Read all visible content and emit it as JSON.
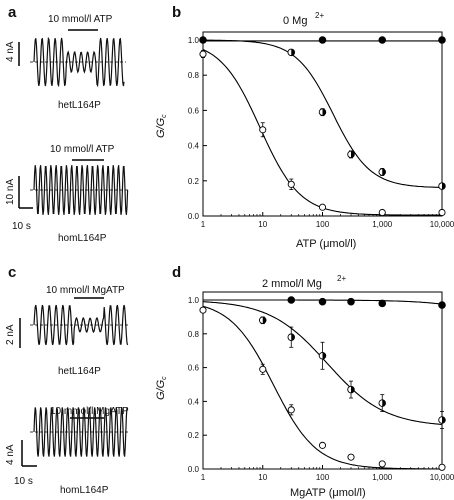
{
  "panels": {
    "a": {
      "letter": "a",
      "treatment_label": "10 mmol/l ATP",
      "scale_current": "4 nA",
      "genotype": "hetL164P"
    },
    "a2": {
      "treatment_label": "10 mmol/l ATP",
      "scale_current": "10 nA",
      "scale_time": "10 s",
      "genotype": "homL164P"
    },
    "c": {
      "letter": "c",
      "treatment_label": "10 mmol/l MgATP",
      "scale_current": "2 nA",
      "genotype": "hetL164P"
    },
    "c2": {
      "treatment_label": "10 mmol/l MgATP",
      "scale_current": "4 nA",
      "scale_time": "10 s",
      "genotype": "homL164P"
    }
  },
  "chart_data": [
    {
      "panel": "b",
      "type": "scatter",
      "title": "0 Mg",
      "title_superscript": "2+",
      "xlabel": "ATP (μmol/l)",
      "ylabel": "G/G",
      "ylabel_sub": "c",
      "xscale": "log",
      "xlim": [
        1,
        10000
      ],
      "ylim": [
        0,
        1.05
      ],
      "xticks": [
        1,
        10,
        100,
        1000,
        10000
      ],
      "xtick_labels": [
        "1",
        "10",
        "100",
        "1,000",
        "10,000"
      ],
      "yticks": [
        0,
        0.2,
        0.4,
        0.6,
        0.8,
        1.0
      ],
      "ytick_labels": [
        "0.0",
        "0.2",
        "0.4",
        "0.6",
        "0.8",
        "1.0"
      ],
      "series": [
        {
          "marker": "filled",
          "x": [
            1,
            100,
            1000,
            10000
          ],
          "y": [
            1.0,
            1.0,
            1.0,
            1.0
          ],
          "err": [
            0,
            0,
            0,
            0
          ],
          "fit": {
            "ic50": 1000000000.0,
            "h": 1,
            "min": 0.99
          }
        },
        {
          "marker": "half",
          "x": [
            30,
            100,
            300,
            1000,
            10000
          ],
          "y": [
            0.93,
            0.59,
            0.35,
            0.25,
            0.17
          ],
          "err": [
            0.01,
            0.02,
            0.02,
            0.02,
            0.01
          ],
          "fit": {
            "ic50": 150,
            "h": 1.4,
            "min": 0.16
          }
        },
        {
          "marker": "open",
          "x": [
            1,
            10,
            30,
            100,
            1000,
            10000
          ],
          "y": [
            0.92,
            0.49,
            0.18,
            0.05,
            0.02,
            0.02
          ],
          "err": [
            0.02,
            0.04,
            0.03,
            0.01,
            0.01,
            0.01
          ],
          "fit": {
            "ic50": 9,
            "h": 1.3,
            "min": 0.005
          }
        }
      ]
    },
    {
      "panel": "d",
      "type": "scatter",
      "title": "2 mmol/l  Mg",
      "title_superscript": "2+",
      "xlabel": "MgATP (μmol/l)",
      "ylabel": "G/G",
      "ylabel_sub": "c",
      "xscale": "log",
      "xlim": [
        1,
        10000
      ],
      "ylim": [
        0,
        1.05
      ],
      "xticks": [
        1,
        10,
        100,
        1000,
        10000
      ],
      "xtick_labels": [
        "1",
        "10",
        "100",
        "1,000",
        "10,000"
      ],
      "yticks": [
        0,
        0.2,
        0.4,
        0.6,
        0.8,
        1.0
      ],
      "ytick_labels": [
        "0.0",
        "0.2",
        "0.4",
        "0.6",
        "0.8",
        "1.0"
      ],
      "series": [
        {
          "marker": "filled",
          "x": [
            30,
            100,
            300,
            1000,
            10000
          ],
          "y": [
            1.0,
            0.99,
            0.99,
            0.98,
            0.97
          ],
          "err": [
            0,
            0.01,
            0.01,
            0.01,
            0.01
          ],
          "fit": {
            "ic50": 1000000.0,
            "h": 0.8,
            "min": 0.0
          }
        },
        {
          "marker": "half",
          "x": [
            10,
            30,
            100,
            300,
            1000,
            10000
          ],
          "y": [
            0.88,
            0.78,
            0.67,
            0.47,
            0.39,
            0.29
          ],
          "err": [
            0.02,
            0.06,
            0.08,
            0.05,
            0.05,
            0.05
          ],
          "fit": {
            "ic50": 120,
            "h": 0.9,
            "min": 0.25
          }
        },
        {
          "marker": "open",
          "x": [
            1,
            10,
            30,
            100,
            300,
            1000,
            10000
          ],
          "y": [
            0.94,
            0.59,
            0.35,
            0.14,
            0.07,
            0.03,
            0.01
          ],
          "err": [
            0.01,
            0.03,
            0.03,
            0.01,
            0.01,
            0.01,
            0.0
          ],
          "fit": {
            "ic50": 15,
            "h": 1.2,
            "min": 0.0
          }
        }
      ]
    }
  ]
}
